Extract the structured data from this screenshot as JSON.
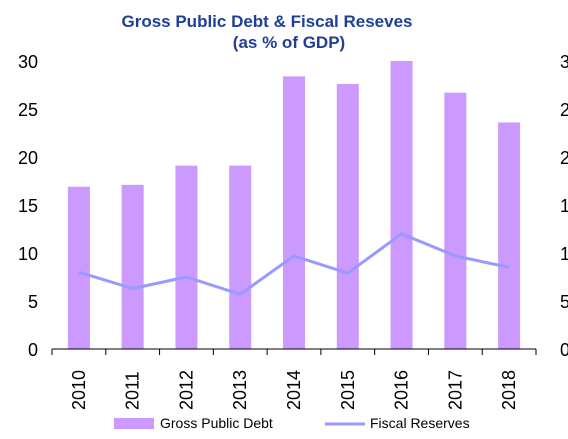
{
  "chart_data": {
    "type": "bar",
    "title_line1": "Gross Public Debt & Fiscal Reseves",
    "title_line2": "(as % of GDP)",
    "categories": [
      "2010",
      "2011",
      "2012",
      "2013",
      "2014",
      "2015",
      "2016",
      "2017",
      "2018"
    ],
    "y_ticks": [
      "0",
      "5",
      "10",
      "15",
      "20",
      "25",
      "30"
    ],
    "ylim": [
      0,
      30
    ],
    "grid": false,
    "legend_position": "bottom",
    "series": [
      {
        "name": "Gross Public Debt",
        "type": "bar",
        "color": "#cc99ff",
        "values": [
          16.9,
          17.1,
          19.1,
          19.1,
          28.4,
          27.6,
          30.0,
          26.7,
          23.6
        ]
      },
      {
        "name": "Fiscal Reserves",
        "type": "line",
        "color": "#9999ff",
        "values": [
          8.0,
          6.3,
          7.5,
          5.7,
          9.7,
          7.9,
          12.0,
          9.7,
          8.5
        ]
      }
    ]
  }
}
